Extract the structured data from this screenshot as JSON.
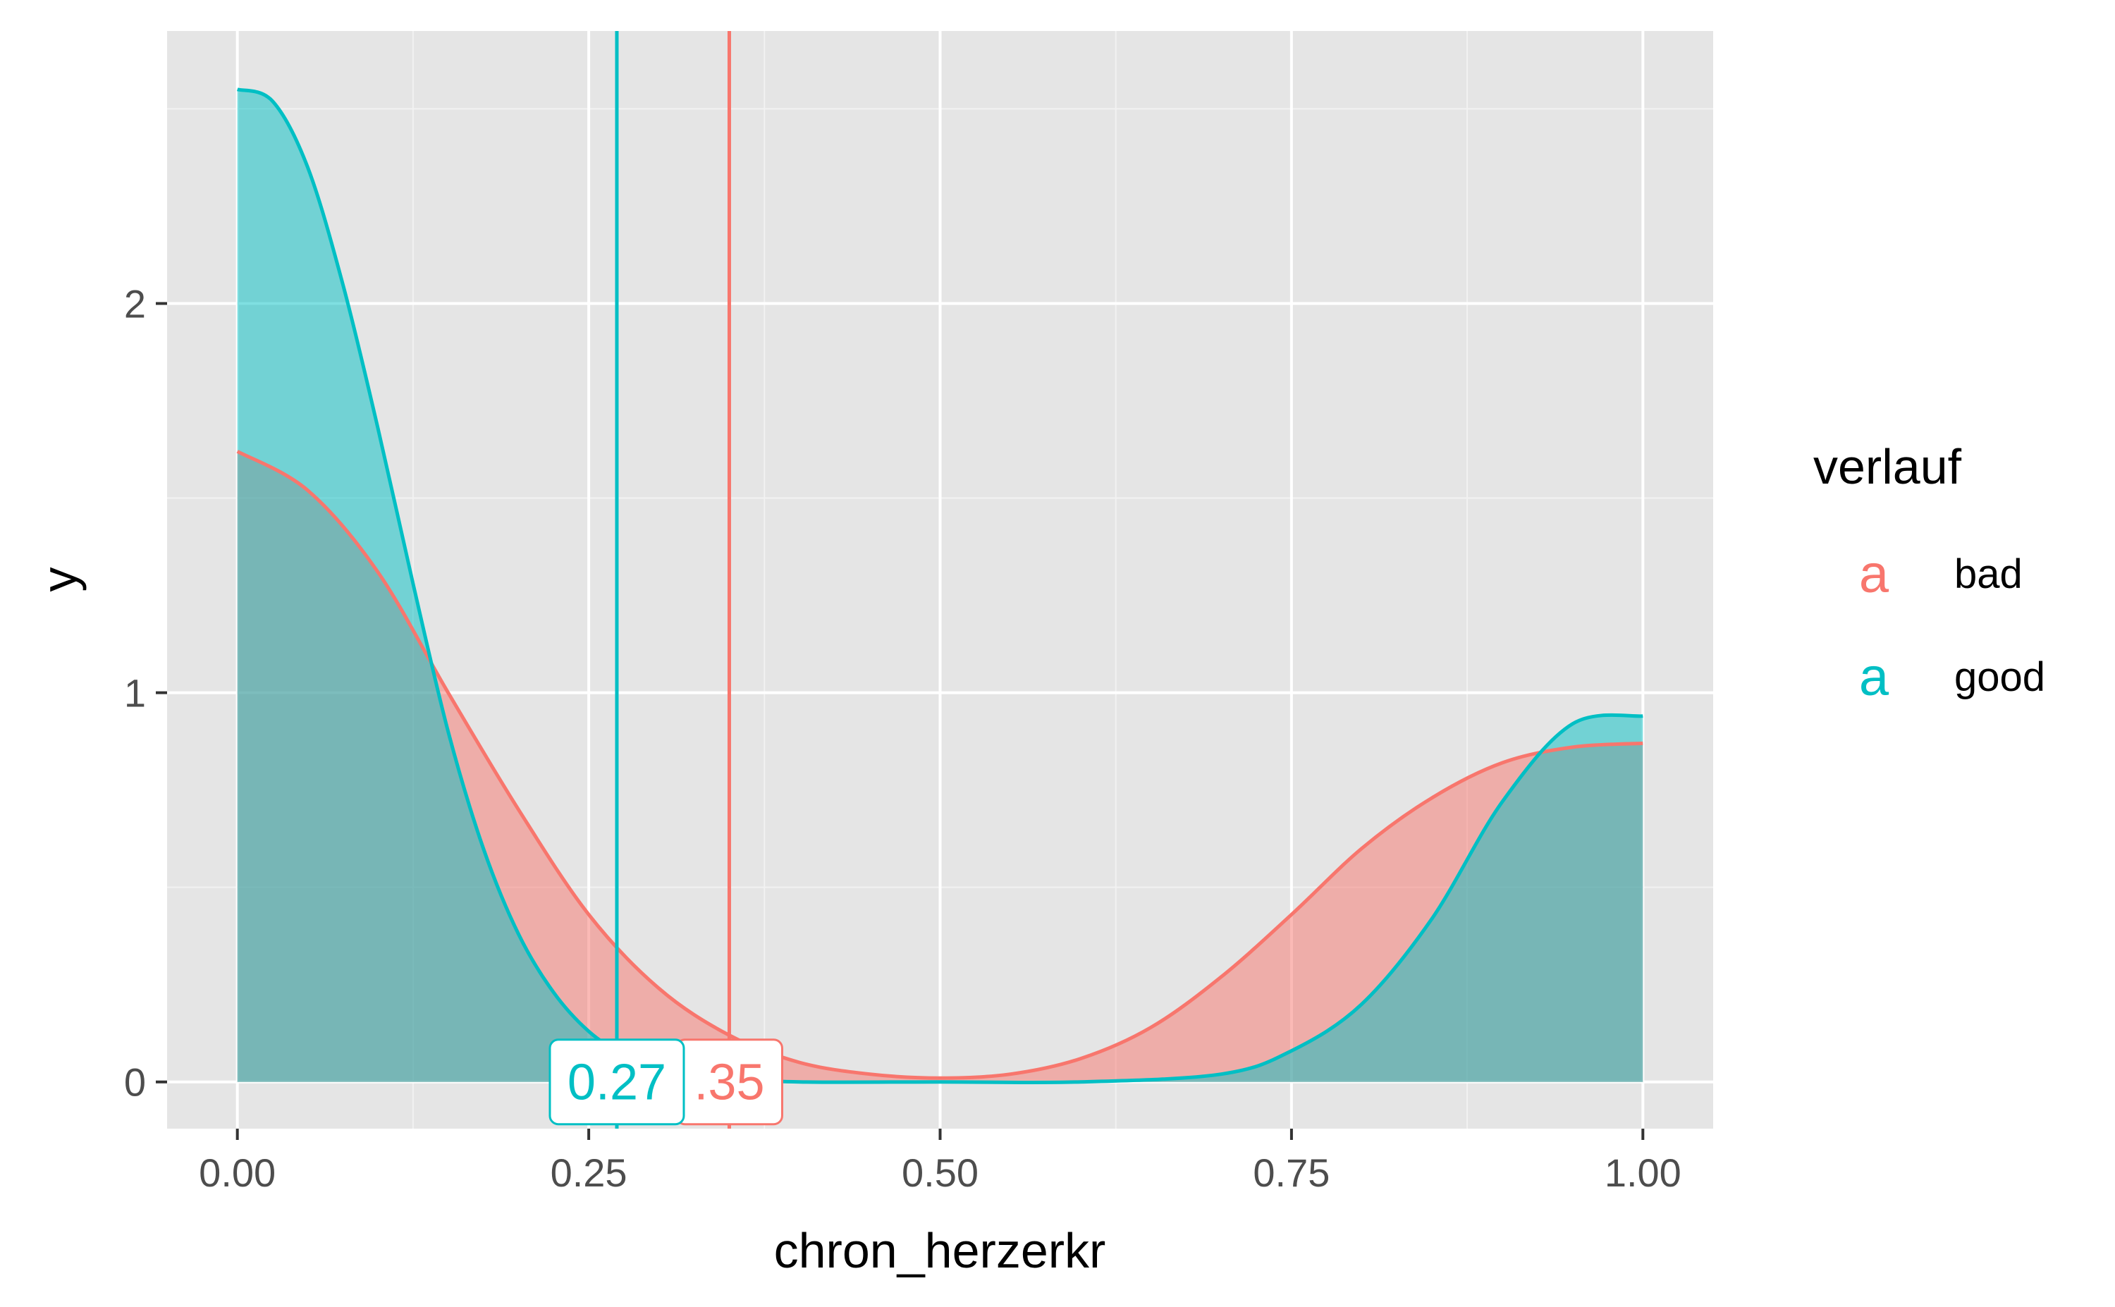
{
  "chart_data": {
    "type": "area",
    "title": "",
    "xlabel": "chron_herzerkr",
    "ylabel": "y",
    "xlim": [
      -0.05,
      1.05
    ],
    "ylim": [
      -0.12,
      2.7
    ],
    "x_ticks": [
      0.0,
      0.25,
      0.5,
      0.75,
      1.0
    ],
    "x_tick_labels": [
      "0.00",
      "0.25",
      "0.50",
      "0.75",
      "1.00"
    ],
    "y_ticks": [
      0,
      1,
      2
    ],
    "y_tick_labels": [
      "0",
      "1",
      "2"
    ],
    "grid": true,
    "legend": {
      "title": "verlauf",
      "placement": "right",
      "key_glyph": "a",
      "entries": [
        "bad",
        "good"
      ]
    },
    "series": [
      {
        "name": "bad",
        "color": "#F8766D",
        "mean": 0.35,
        "mean_label": ".35",
        "x": [
          0.0,
          0.05,
          0.1,
          0.15,
          0.2,
          0.25,
          0.3,
          0.35,
          0.4,
          0.45,
          0.5,
          0.55,
          0.6,
          0.65,
          0.7,
          0.75,
          0.8,
          0.85,
          0.9,
          0.95,
          1.0
        ],
        "values": [
          1.62,
          1.52,
          1.31,
          1.0,
          0.7,
          0.43,
          0.24,
          0.12,
          0.05,
          0.02,
          0.01,
          0.02,
          0.06,
          0.14,
          0.27,
          0.43,
          0.6,
          0.73,
          0.82,
          0.86,
          0.87
        ]
      },
      {
        "name": "good",
        "color": "#00BFC4",
        "mean": 0.27,
        "mean_label": "0.27",
        "x": [
          0.0,
          0.025,
          0.05,
          0.075,
          0.1,
          0.125,
          0.15,
          0.175,
          0.2,
          0.225,
          0.25,
          0.275,
          0.3,
          0.35,
          0.4,
          0.5,
          0.6,
          0.7,
          0.75,
          0.8,
          0.85,
          0.9,
          0.95,
          1.0
        ],
        "values": [
          2.55,
          2.52,
          2.35,
          2.05,
          1.68,
          1.28,
          0.9,
          0.6,
          0.38,
          0.23,
          0.13,
          0.07,
          0.04,
          0.01,
          0.0,
          0.0,
          0.0,
          0.02,
          0.08,
          0.2,
          0.42,
          0.72,
          0.92,
          0.94
        ]
      }
    ]
  }
}
